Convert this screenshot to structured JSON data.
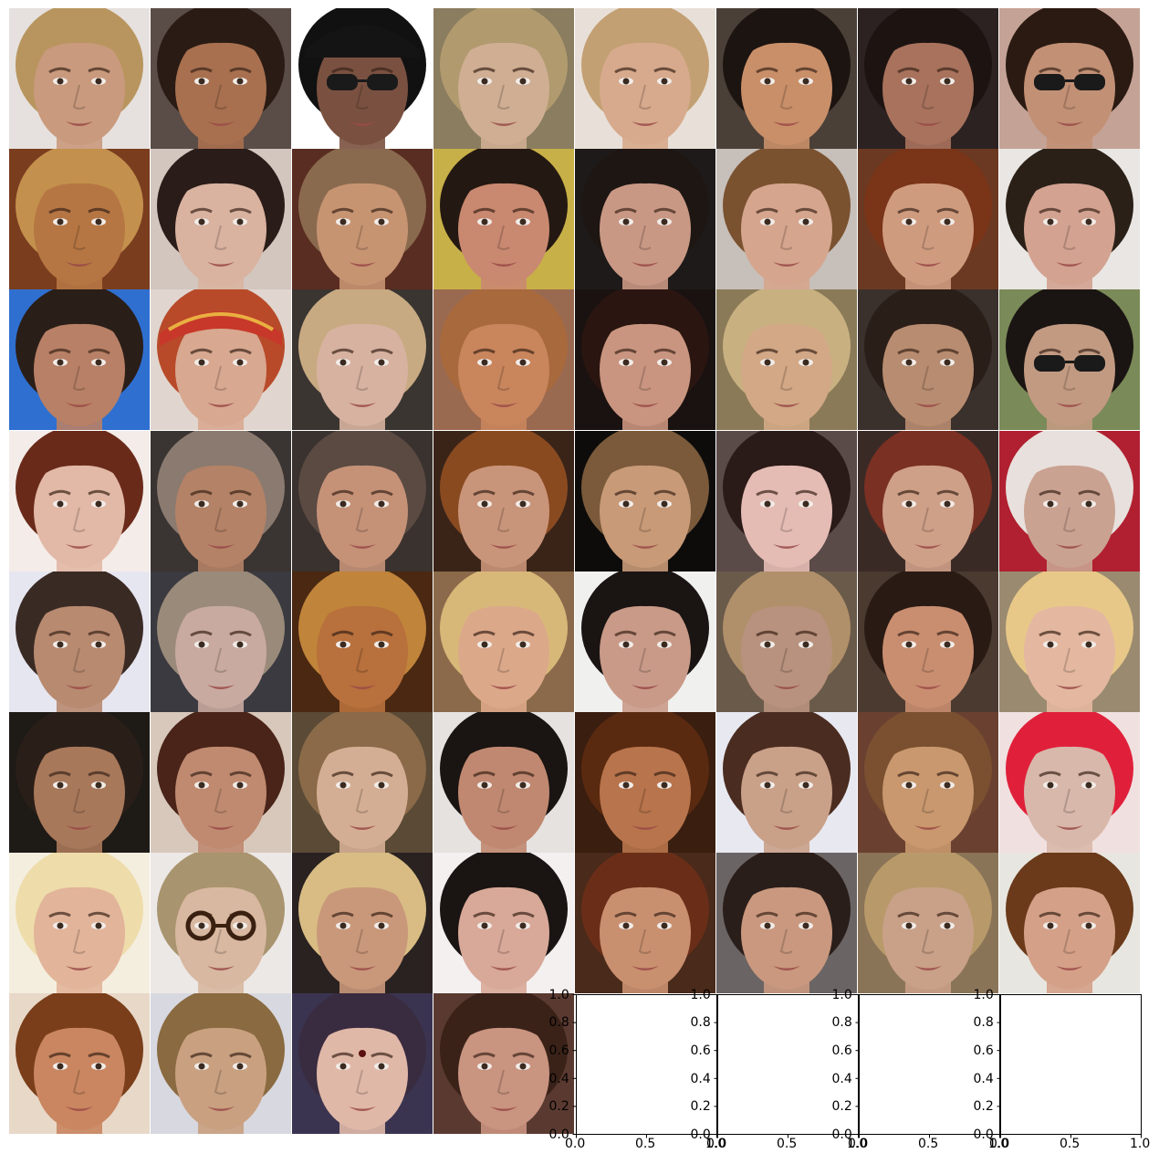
{
  "grid": {
    "rows": 8,
    "cols": 8,
    "tiles": [
      {
        "hair": "#b8955e",
        "skin": "#c99a7d",
        "bg": "#e6e1de",
        "acc": "none"
      },
      {
        "hair": "#2a1b14",
        "skin": "#a8704f",
        "bg": "#5a4c47",
        "acc": "none"
      },
      {
        "hair": "#111111",
        "skin": "#7a5140",
        "bg": "#ffffff",
        "acc": "cap-sunglasses"
      },
      {
        "hair": "#b19a6e",
        "skin": "#cfae93",
        "bg": "#8a7d60",
        "acc": "none"
      },
      {
        "hair": "#c3a073",
        "skin": "#d7aa8d",
        "bg": "#e8e0d8",
        "acc": "none"
      },
      {
        "hair": "#1c1410",
        "skin": "#c98f69",
        "bg": "#4a4038",
        "acc": "none"
      },
      {
        "hair": "#1d1412",
        "skin": "#a8725d",
        "bg": "#2c2221",
        "acc": "none"
      },
      {
        "hair": "#2a1a12",
        "skin": "#c29075",
        "bg": "#c4a295",
        "acc": "sunglasses"
      },
      {
        "hair": "#c3914d",
        "skin": "#b67643",
        "bg": "#7a3d1e",
        "acc": "none"
      },
      {
        "hair": "#2a1c18",
        "skin": "#d9b2a0",
        "bg": "#d2c6bf",
        "acc": "none"
      },
      {
        "hair": "#8a6a4e",
        "skin": "#c79472",
        "bg": "#5a2d22",
        "acc": "none"
      },
      {
        "hair": "#241812",
        "skin": "#c98870",
        "bg": "#c8b048",
        "acc": "none"
      },
      {
        "hair": "#1e1612",
        "skin": "#c99884",
        "bg": "#1e1a1a",
        "acc": "none"
      },
      {
        "hair": "#7a5230",
        "skin": "#d5a58d",
        "bg": "#c7bfb9",
        "acc": "none"
      },
      {
        "hair": "#7a3418",
        "skin": "#cf9b7f",
        "bg": "#6b3921",
        "acc": "none"
      },
      {
        "hair": "#2a2018",
        "skin": "#d3a290",
        "bg": "#e9e6e3",
        "acc": "none"
      },
      {
        "hair": "#2a1e18",
        "skin": "#b88066",
        "bg": "#2f6fd0",
        "acc": "none"
      },
      {
        "hair": "#b84a2a",
        "skin": "#d8a890",
        "bg": "#e0d6cf",
        "acc": "bandana"
      },
      {
        "hair": "#c8aa82",
        "skin": "#d7b2a0",
        "bg": "#3a3530",
        "acc": "none"
      },
      {
        "hair": "#a8693c",
        "skin": "#c9855c",
        "bg": "#9a6a50",
        "acc": "none"
      },
      {
        "hair": "#2a1510",
        "skin": "#c99580",
        "bg": "#1a1210",
        "acc": "none"
      },
      {
        "hair": "#c8b080",
        "skin": "#d2a886",
        "bg": "#8a7a58",
        "acc": "none"
      },
      {
        "hair": "#2a1e18",
        "skin": "#b88c70",
        "bg": "#3a302c",
        "acc": "none"
      },
      {
        "hair": "#1a1512",
        "skin": "#c29a82",
        "bg": "#7a8a58",
        "acc": "sunglasses"
      },
      {
        "hair": "#6a2a1a",
        "skin": "#e2b8a6",
        "bg": "#f4ece8",
        "acc": "none"
      },
      {
        "hair": "#8a7a70",
        "skin": "#b48266",
        "bg": "#3a3432",
        "acc": "none"
      },
      {
        "hair": "#5a4a42",
        "skin": "#c59278",
        "bg": "#3a322e",
        "acc": "none"
      },
      {
        "hair": "#8a4a20",
        "skin": "#c9957a",
        "bg": "#3a2418",
        "acc": "none"
      },
      {
        "hair": "#7a5a3a",
        "skin": "#c89a78",
        "bg": "#0e0c0b",
        "acc": "none"
      },
      {
        "hair": "#2a1a18",
        "skin": "#e4bcb4",
        "bg": "#5a4a48",
        "acc": "none"
      },
      {
        "hair": "#7a3022",
        "skin": "#cfa088",
        "bg": "#3a2a26",
        "acc": "none"
      },
      {
        "hair": "#e8e0dc",
        "skin": "#caa292",
        "bg": "#b02030",
        "acc": "none"
      },
      {
        "hair": "#3a2a24",
        "skin": "#b88a70",
        "bg": "#e6e6f0",
        "acc": "none"
      },
      {
        "hair": "#9a8a7a",
        "skin": "#c9aaa0",
        "bg": "#3a3a40",
        "acc": "none"
      },
      {
        "hair": "#c0843a",
        "skin": "#b8703c",
        "bg": "#4a2812",
        "acc": "none"
      },
      {
        "hair": "#d8b878",
        "skin": "#dca88a",
        "bg": "#8a6a4a",
        "acc": "none"
      },
      {
        "hair": "#1a1412",
        "skin": "#c99a88",
        "bg": "#f0f0ee",
        "acc": "none"
      },
      {
        "hair": "#b0906a",
        "skin": "#b8927e",
        "bg": "#6a5a4a",
        "acc": "none"
      },
      {
        "hair": "#2a1a14",
        "skin": "#c98e70",
        "bg": "#4a3a30",
        "acc": "none"
      },
      {
        "hair": "#e8c888",
        "skin": "#e4b8a0",
        "bg": "#9a8a70",
        "acc": "none"
      },
      {
        "hair": "#2a1e18",
        "skin": "#a8785a",
        "bg": "#1e1a16",
        "acc": "none"
      },
      {
        "hair": "#4a2418",
        "skin": "#c08a70",
        "bg": "#d8c8bc",
        "acc": "none"
      },
      {
        "hair": "#8a6a48",
        "skin": "#d4ae94",
        "bg": "#5a4a36",
        "acc": "none"
      },
      {
        "hair": "#1a1412",
        "skin": "#c08870",
        "bg": "#e6e2e0",
        "acc": "none"
      },
      {
        "hair": "#5a2a10",
        "skin": "#b8744c",
        "bg": "#3a1e10",
        "acc": "none"
      },
      {
        "hair": "#4a2c20",
        "skin": "#c9a088",
        "bg": "#e8e8f0",
        "acc": "none"
      },
      {
        "hair": "#7a5030",
        "skin": "#c9986e",
        "bg": "#6a4030",
        "acc": "none"
      },
      {
        "hair": "#e0203a",
        "skin": "#d8b8aa",
        "bg": "#f0e0e0",
        "acc": "none"
      },
      {
        "hair": "#eedcaa",
        "skin": "#e2b49a",
        "bg": "#f4eede",
        "acc": "none"
      },
      {
        "hair": "#a8946e",
        "skin": "#d8b8a0",
        "bg": "#ece8e6",
        "acc": "glasses"
      },
      {
        "hair": "#d8bc84",
        "skin": "#c9987a",
        "bg": "#2a2220",
        "acc": "none"
      },
      {
        "hair": "#1a1412",
        "skin": "#d8a898",
        "bg": "#f4f0f0",
        "acc": "none"
      },
      {
        "hair": "#6a2e18",
        "skin": "#c99070",
        "bg": "#4a2a1a",
        "acc": "none"
      },
      {
        "hair": "#2a1e1a",
        "skin": "#c9987e",
        "bg": "#6a6464",
        "acc": "none"
      },
      {
        "hair": "#b89a6a",
        "skin": "#c9a088",
        "bg": "#8a7458",
        "acc": "none"
      },
      {
        "hair": "#6a3a1a",
        "skin": "#d4a088",
        "bg": "#e8e6e0",
        "acc": "none"
      },
      {
        "hair": "#7a3e1a",
        "skin": "#c98660",
        "bg": "#e8d8c8",
        "acc": "none"
      },
      {
        "hair": "#8a6a40",
        "skin": "#c9a080",
        "bg": "#d8d8e0",
        "acc": "none"
      },
      {
        "hair": "#3a2c40",
        "skin": "#e0b8a8",
        "bg": "#3a3450",
        "acc": "bindi"
      },
      {
        "hair": "#3a2218",
        "skin": "#c99480",
        "bg": "#5a3a30",
        "acc": "none"
      }
    ]
  },
  "empty_axes": {
    "count": 4,
    "x_ticks": [
      "0.0",
      "0.5",
      "1.0"
    ],
    "y_ticks": [
      "0.0",
      "0.2",
      "0.4",
      "0.6",
      "0.8",
      "1.0"
    ],
    "xlim": [
      0,
      1
    ],
    "ylim": [
      0,
      1
    ]
  }
}
